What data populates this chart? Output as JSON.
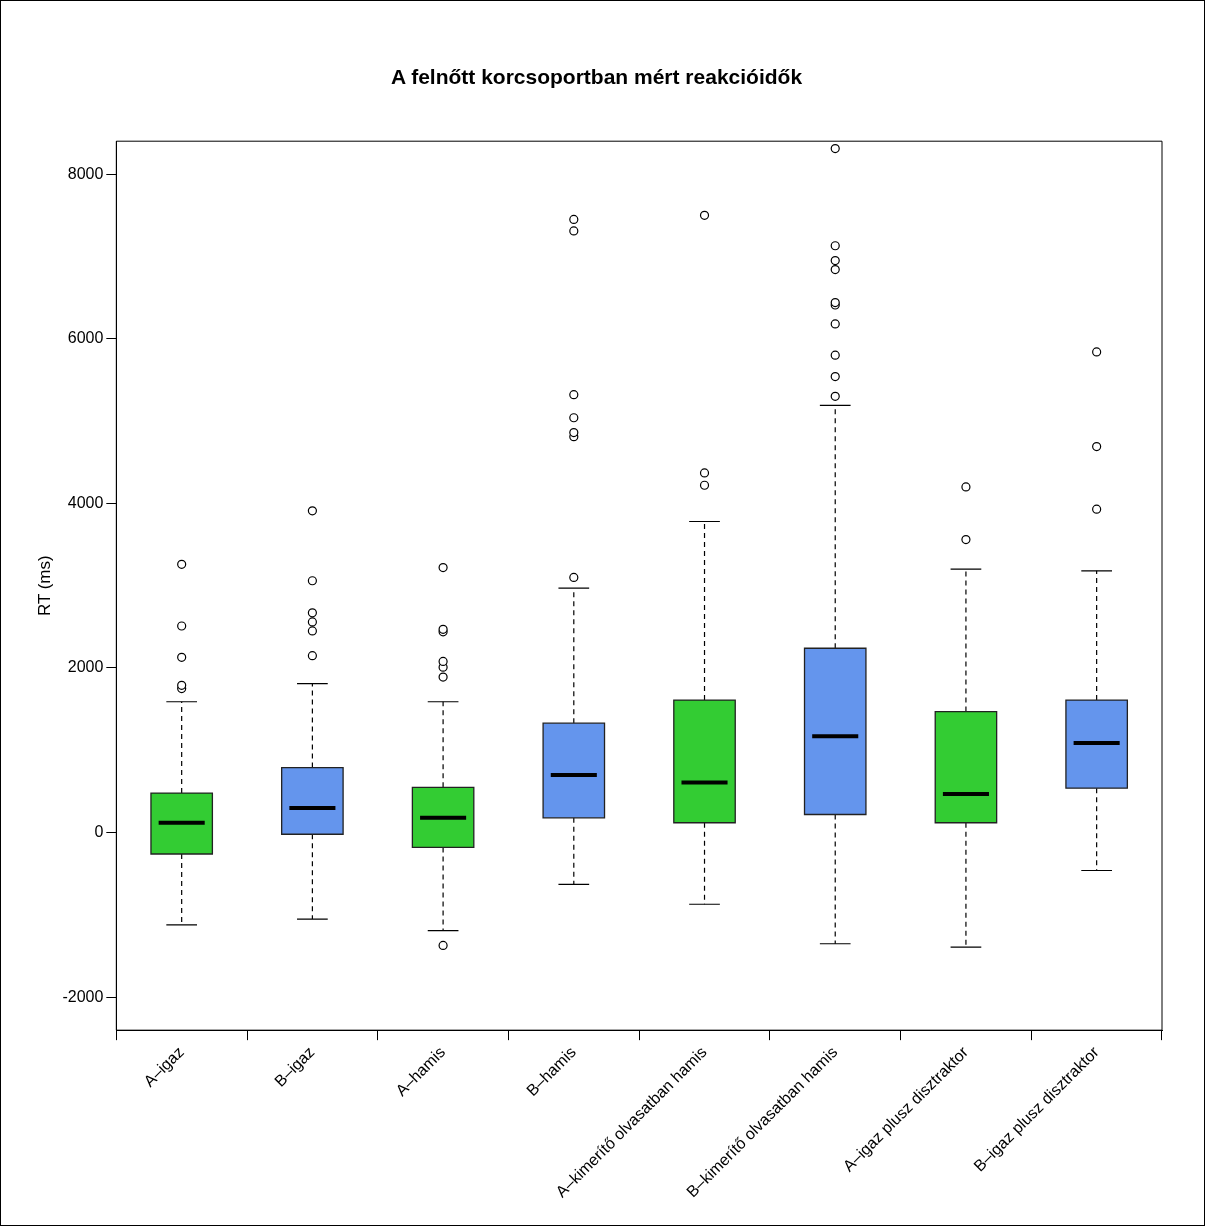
{
  "chart_data": {
    "type": "box",
    "title": "A felnőtt korcsoportban mért reakcióidők",
    "ylabel": "RT (ms)",
    "categories": [
      "A–igaz",
      "B–igaz",
      "A–hamis",
      "B–hamis",
      "A–kimerítő olvasatban hamis",
      "B–kimerítő olvasatban hamis",
      "A–igaz plusz disztraktor",
      "B–igaz plusz disztraktor"
    ],
    "colors": [
      "#33cc33",
      "#6495ed",
      "#33cc33",
      "#6495ed",
      "#33cc33",
      "#6495ed",
      "#33cc33",
      "#6495ed"
    ],
    "boxes": [
      {
        "low": -1120,
        "q1": -260,
        "median": 120,
        "q3": 480,
        "high": 1590,
        "outliers": [
          1750,
          1790,
          2130,
          2510,
          3260
        ]
      },
      {
        "low": -1050,
        "q1": -20,
        "median": 300,
        "q3": 790,
        "high": 1810,
        "outliers": [
          2150,
          2450,
          2560,
          2670,
          3060,
          3910
        ]
      },
      {
        "low": -1190,
        "q1": -180,
        "median": 180,
        "q3": 550,
        "high": 1590,
        "outliers": [
          -1370,
          1890,
          2010,
          2080,
          2440,
          2470,
          3220
        ]
      },
      {
        "low": -630,
        "q1": 180,
        "median": 700,
        "q3": 1330,
        "high": 2970,
        "outliers": [
          3100,
          4810,
          4860,
          5040,
          5320,
          7310,
          7450
        ]
      },
      {
        "low": -870,
        "q1": 120,
        "median": 610,
        "q3": 1610,
        "high": 3780,
        "outliers": [
          4220,
          4370,
          7500
        ]
      },
      {
        "low": -1350,
        "q1": 220,
        "median": 1170,
        "q3": 2240,
        "high": 5190,
        "outliers": [
          5300,
          5540,
          5800,
          6180,
          6410,
          6440,
          6840,
          6950,
          7130,
          8310
        ]
      },
      {
        "low": -1390,
        "q1": 120,
        "median": 470,
        "q3": 1470,
        "high": 3200,
        "outliers": [
          3560,
          4200
        ]
      },
      {
        "low": -460,
        "q1": 540,
        "median": 1090,
        "q3": 1610,
        "high": 3180,
        "outliers": [
          3930,
          4690,
          5840
        ]
      }
    ],
    "ylim": [
      -2400,
      8400
    ],
    "yticks": [
      -2000,
      0,
      2000,
      4000,
      6000,
      8000
    ],
    "grid": false,
    "legend": false
  }
}
